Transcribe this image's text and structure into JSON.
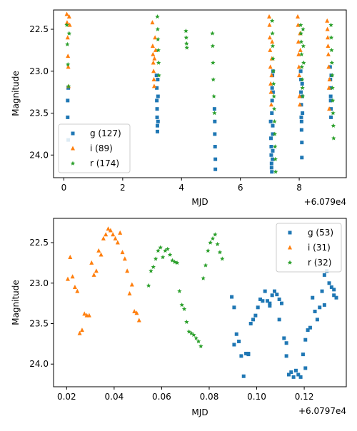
{
  "chart_data": [
    {
      "type": "scatter",
      "xlabel": "MJD",
      "ylabel": "Magnitude",
      "x_offset_label": "+6.079e4",
      "x_ticks": [
        "0",
        "2",
        "4",
        "6",
        "8"
      ],
      "x_tick_values": [
        0,
        2,
        4,
        6,
        8
      ],
      "y_ticks": [
        "22.5",
        "23.0",
        "23.5",
        "24.0"
      ],
      "y_tick_values": [
        22.5,
        23.0,
        23.5,
        24.0
      ],
      "xlim": [
        -0.35,
        9.6
      ],
      "ylim": [
        24.27,
        22.27
      ],
      "y_inverted": true,
      "grid": false,
      "legend_position": "lower-left",
      "series": [
        {
          "name": "g (127)",
          "color": "#1f77b4",
          "marker": "square",
          "x": [
            0.13,
            0.13,
            0.15,
            0.15,
            3.15,
            3.16,
            3.16,
            3.17,
            3.17,
            3.18,
            3.18,
            3.19,
            3.2,
            3.2,
            5.12,
            5.13,
            5.13,
            5.14,
            5.15,
            5.15,
            7.03,
            7.04,
            7.05,
            7.05,
            7.06,
            7.06,
            7.07,
            7.07,
            7.08,
            7.08,
            7.09,
            7.09,
            7.1,
            7.1,
            7.1,
            7.11,
            7.11,
            8.05,
            8.06,
            8.06,
            8.07,
            8.07,
            8.08,
            8.08,
            8.09,
            8.09,
            8.1,
            8.1,
            8.11,
            9.05,
            9.06,
            9.06,
            9.07,
            9.07,
            9.08,
            9.08,
            9.09
          ],
          "y": [
            23.35,
            23.55,
            23.82,
            23.2,
            23.05,
            23.2,
            23.35,
            23.45,
            23.55,
            23.65,
            23.72,
            23.1,
            23.3,
            23.6,
            23.45,
            23.6,
            23.75,
            23.9,
            24.05,
            24.17,
            23.6,
            23.8,
            23.9,
            24.0,
            24.1,
            24.15,
            24.2,
            23.5,
            23.35,
            23.2,
            23.05,
            24.05,
            23.95,
            23.75,
            23.65,
            23.25,
            23.0,
            23.0,
            23.1,
            23.25,
            23.4,
            23.55,
            23.6,
            23.7,
            23.85,
            24.03,
            23.3,
            23.15,
            23.5,
            22.95,
            23.1,
            23.2,
            23.3,
            23.35,
            23.45,
            23.55,
            23.05
          ]
        },
        {
          "name": "i (89)",
          "color": "#ff7f0e",
          "marker": "triangle",
          "x": [
            0.1,
            0.11,
            0.13,
            0.14,
            0.15,
            0.16,
            0.18,
            0.2,
            3.01,
            3.02,
            3.03,
            3.04,
            3.05,
            3.06,
            3.07,
            3.08,
            3.1,
            3.12,
            6.98,
            6.99,
            7.0,
            7.01,
            7.02,
            7.03,
            7.04,
            7.05,
            7.06,
            7.07,
            7.08,
            7.95,
            7.96,
            7.97,
            7.98,
            7.99,
            8.0,
            8.01,
            8.02,
            8.03,
            8.04,
            8.95,
            8.96,
            8.97,
            8.98,
            8.99,
            9.0,
            9.01,
            9.02,
            9.03
          ],
          "y": [
            22.32,
            22.42,
            22.6,
            22.82,
            22.95,
            23.18,
            22.35,
            22.45,
            22.42,
            22.7,
            22.8,
            22.9,
            23.0,
            23.1,
            23.18,
            22.85,
            22.6,
            22.75,
            22.35,
            22.45,
            22.6,
            22.75,
            22.95,
            23.15,
            23.25,
            23.4,
            23.05,
            22.85,
            22.65,
            22.35,
            22.45,
            22.65,
            22.8,
            22.95,
            23.05,
            23.3,
            23.4,
            22.55,
            22.75,
            22.4,
            22.5,
            22.6,
            22.7,
            22.8,
            22.95,
            23.2,
            23.45,
            23.1
          ]
        },
        {
          "name": "r (174)",
          "color": "#2ca02c",
          "marker": "star",
          "x": [
            0.1,
            0.12,
            0.14,
            0.16,
            0.18,
            3.18,
            3.19,
            3.2,
            3.21,
            3.22,
            3.23,
            4.15,
            4.16,
            4.17,
            4.18,
            5.05,
            5.06,
            5.07,
            5.08,
            5.1,
            5.12,
            7.08,
            7.09,
            7.1,
            7.11,
            7.12,
            7.13,
            7.14,
            7.15,
            7.16,
            7.17,
            7.18,
            7.19,
            7.2,
            8.05,
            8.06,
            8.07,
            8.08,
            8.09,
            8.1,
            8.11,
            8.12,
            8.13,
            8.14,
            8.15,
            9.08,
            9.09,
            9.1,
            9.11,
            9.12,
            9.13,
            9.14,
            9.15,
            9.16,
            9.17
          ],
          "y": [
            22.45,
            22.68,
            22.92,
            23.18,
            22.55,
            22.35,
            22.5,
            22.62,
            22.75,
            22.9,
            23.05,
            22.52,
            22.6,
            22.67,
            22.72,
            22.55,
            22.7,
            22.9,
            23.1,
            23.3,
            23.5,
            22.4,
            22.55,
            22.7,
            22.85,
            23.0,
            23.15,
            23.3,
            23.45,
            23.6,
            23.75,
            23.9,
            24.05,
            24.2,
            22.45,
            22.55,
            22.65,
            22.8,
            22.95,
            23.1,
            23.2,
            23.3,
            22.5,
            22.7,
            22.9,
            22.45,
            22.6,
            22.75,
            22.9,
            23.05,
            23.2,
            23.35,
            23.5,
            23.65,
            23.8
          ]
        }
      ]
    },
    {
      "type": "scatter",
      "xlabel": "MJD",
      "ylabel": "Magnitude",
      "x_offset_label": "+6.0797e4",
      "x_ticks": [
        "0.02",
        "0.04",
        "0.06",
        "0.08",
        "0.10",
        "0.12"
      ],
      "x_tick_values": [
        0.02,
        0.04,
        0.06,
        0.08,
        0.1,
        0.12
      ],
      "y_ticks": [
        "22.5",
        "23.0",
        "23.5",
        "24.0"
      ],
      "y_tick_values": [
        22.5,
        23.0,
        23.5,
        24.0
      ],
      "xlim": [
        0.0145,
        0.1377
      ],
      "ylim": [
        24.28,
        22.2
      ],
      "y_inverted": true,
      "grid": false,
      "legend_position": "top-right",
      "series": [
        {
          "name": "g (53)",
          "color": "#1f77b4",
          "marker": "square",
          "x": [
            0.0895,
            0.0905,
            0.0915,
            0.0925,
            0.0935,
            0.0945,
            0.0955,
            0.0965,
            0.0975,
            0.0985,
            0.0995,
            0.1005,
            0.1015,
            0.1025,
            0.1035,
            0.1045,
            0.1055,
            0.1065,
            0.1075,
            0.1085,
            0.1095,
            0.1105,
            0.1115,
            0.1125,
            0.1135,
            0.1145,
            0.1155,
            0.1165,
            0.1175,
            0.1185,
            0.1195,
            0.1205,
            0.1215,
            0.1225,
            0.1235,
            0.1245,
            0.1255,
            0.1265,
            0.1275,
            0.1285,
            0.1295,
            0.1305,
            0.1315,
            0.1325,
            0.1335,
            0.0905,
            0.0965,
            0.1055,
            0.1095,
            0.1125,
            0.1205,
            0.1285,
            0.1325
          ],
          "y": [
            23.17,
            23.3,
            23.63,
            23.72,
            23.9,
            24.15,
            23.87,
            23.87,
            23.5,
            23.45,
            23.4,
            23.3,
            23.2,
            23.22,
            23.1,
            23.22,
            23.25,
            23.15,
            23.1,
            23.14,
            23.2,
            23.25,
            23.68,
            23.9,
            24.13,
            24.1,
            24.16,
            24.08,
            24.13,
            24.16,
            23.88,
            23.7,
            23.58,
            23.55,
            23.18,
            23.35,
            23.45,
            23.3,
            23.1,
            22.9,
            22.85,
            23.0,
            23.05,
            23.15,
            23.18,
            23.76,
            23.88,
            23.28,
            23.45,
            23.74,
            24.05,
            23.27,
            23.08
          ]
        },
        {
          "name": "i (31)",
          "color": "#ff7f0e",
          "marker": "triangle",
          "x": [
            0.0205,
            0.0215,
            0.0225,
            0.0235,
            0.0245,
            0.0255,
            0.0265,
            0.0275,
            0.0285,
            0.0295,
            0.0305,
            0.0315,
            0.0325,
            0.0335,
            0.0345,
            0.0355,
            0.0365,
            0.0375,
            0.0385,
            0.0395,
            0.0405,
            0.0415,
            0.0425,
            0.0435,
            0.0445,
            0.0455,
            0.0465,
            0.0475,
            0.0485,
            0.0495,
            0.0505
          ],
          "y": [
            22.95,
            22.68,
            22.92,
            23.05,
            23.1,
            23.62,
            23.58,
            23.38,
            23.4,
            23.4,
            22.75,
            22.9,
            22.85,
            22.6,
            22.65,
            22.45,
            22.4,
            22.33,
            22.35,
            22.4,
            22.45,
            22.5,
            22.38,
            22.62,
            22.7,
            22.85,
            23.13,
            23.02,
            23.35,
            23.37,
            23.46
          ]
        },
        {
          "name": "r (32)",
          "color": "#2ca02c",
          "marker": "star",
          "x": [
            0.0545,
            0.0555,
            0.0565,
            0.0575,
            0.0585,
            0.0595,
            0.0605,
            0.0615,
            0.0625,
            0.0635,
            0.0645,
            0.0655,
            0.0665,
            0.0675,
            0.0685,
            0.0695,
            0.0705,
            0.0715,
            0.0725,
            0.0735,
            0.0745,
            0.0755,
            0.0765,
            0.0775,
            0.0785,
            0.0795,
            0.0805,
            0.0815,
            0.0825,
            0.0835,
            0.0845,
            0.0855
          ],
          "y": [
            23.03,
            22.85,
            22.8,
            22.7,
            22.6,
            22.56,
            22.68,
            22.6,
            22.58,
            22.65,
            22.72,
            22.74,
            22.75,
            23.1,
            23.27,
            23.32,
            23.48,
            23.6,
            23.62,
            23.64,
            23.68,
            23.72,
            23.78,
            22.94,
            22.78,
            22.6,
            22.5,
            22.45,
            22.4,
            22.52,
            22.62,
            22.7
          ]
        }
      ]
    }
  ]
}
